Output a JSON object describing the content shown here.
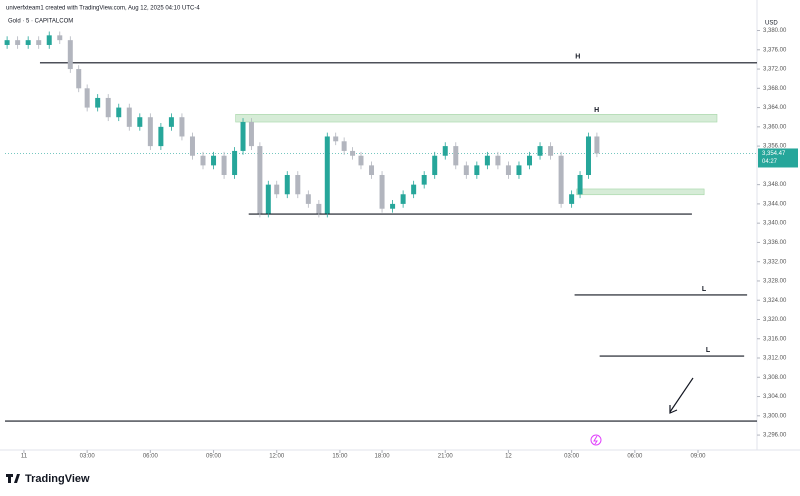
{
  "chart_data": {
    "type": "candlestick",
    "title": "Gold · 5 · CAPITALCOM",
    "subtitle": "univerfxteam1 created with TradingView.com, Aug 12, 2025 04:10 UTC-4",
    "currency": "USD",
    "brand": "TradingView",
    "up_color": "#26a69a",
    "down_color": "#b2b5be",
    "grid": false,
    "x": [
      -0.8,
      -0.3,
      0.2,
      0.7,
      1.2,
      1.7,
      2.2,
      2.6,
      3.0,
      3.5,
      4.0,
      4.5,
      5.0,
      5.5,
      6.0,
      6.5,
      7.0,
      7.5,
      8.0,
      8.5,
      9.0,
      9.5,
      10.0,
      10.4,
      10.8,
      11.2,
      11.6,
      12.0,
      12.5,
      13.0,
      13.5,
      14.0,
      14.4,
      14.8,
      15.2,
      15.6,
      16.0,
      16.5,
      17.0,
      17.5,
      18.0,
      18.5,
      19.0,
      19.5,
      20.0,
      20.5,
      21.0,
      21.5,
      22.0,
      22.5,
      23.0,
      23.5,
      24.0,
      24.5,
      25.0,
      25.5,
      26.0,
      26.4,
      26.8,
      27.2
    ],
    "open": [
      3377,
      3378,
      3377,
      3378,
      3377,
      3379,
      3378,
      3372,
      3368,
      3364,
      3366,
      3362,
      3364,
      3360,
      3362,
      3356,
      3360,
      3362,
      3358,
      3354,
      3352,
      3354,
      3350,
      3355,
      3361,
      3356,
      3342,
      3348,
      3346,
      3350,
      3346,
      3344,
      3342,
      3358,
      3357,
      3355,
      3354,
      3352,
      3350,
      3343,
      3344,
      3346,
      3348,
      3350,
      3354,
      3356,
      3352,
      3350,
      3352,
      3354,
      3352,
      3350,
      3352,
      3354,
      3356,
      3354,
      3344,
      3346,
      3350,
      3358
    ],
    "high": [
      3378.8,
      3378.8,
      3378.8,
      3378.8,
      3379.8,
      3379.8,
      3378.8,
      3372.8,
      3368.8,
      3366.8,
      3366.8,
      3364.8,
      3364.8,
      3362.8,
      3362.8,
      3360.8,
      3362.8,
      3362.8,
      3358.8,
      3354.8,
      3354.8,
      3354.8,
      3355.8,
      3361.8,
      3361.8,
      3356.8,
      3348.8,
      3348.8,
      3350.8,
      3350.8,
      3346.8,
      3344.8,
      3358.8,
      3358.8,
      3357.8,
      3355.8,
      3354.8,
      3352.8,
      3350.8,
      3344.8,
      3346.8,
      3348.8,
      3350.8,
      3354.8,
      3356.8,
      3356.8,
      3352.8,
      3352.8,
      3354.8,
      3354.8,
      3352.8,
      3352.8,
      3354.8,
      3356.8,
      3356.8,
      3354.8,
      3346.8,
      3350.8,
      3358.8,
      3358.8
    ],
    "low": [
      3376.2,
      3376.2,
      3376.2,
      3376.2,
      3376.2,
      3377.2,
      3371.2,
      3367.2,
      3363.2,
      3363.2,
      3361.2,
      3361.2,
      3359.2,
      3359.2,
      3355.2,
      3355.2,
      3359.2,
      3357.2,
      3353.2,
      3351.2,
      3351.2,
      3349.2,
      3349.2,
      3354.2,
      3355.2,
      3341.2,
      3341.2,
      3345.2,
      3345.2,
      3345.2,
      3343.2,
      3341.2,
      3341.2,
      3356.2,
      3354.2,
      3353.2,
      3351.2,
      3349.2,
      3342.2,
      3342.2,
      3343.2,
      3345.2,
      3347.2,
      3349.2,
      3353.2,
      3351.2,
      3349.2,
      3349.2,
      3351.2,
      3351.2,
      3349.2,
      3349.2,
      3351.2,
      3353.2,
      3353.2,
      3343.2,
      3343.2,
      3345.2,
      3349.2,
      3353.7
    ],
    "close": [
      3378,
      3377,
      3378,
      3377,
      3379,
      3378,
      3372,
      3368,
      3364,
      3366,
      3362,
      3364,
      3360,
      3362,
      3356,
      3360,
      3362,
      3358,
      3354,
      3352,
      3354,
      3350,
      3355,
      3361,
      3356,
      3342,
      3348,
      3346,
      3350,
      3346,
      3344,
      3342,
      3358,
      3357,
      3355,
      3354,
      3352,
      3350,
      3343,
      3344,
      3346,
      3348,
      3350,
      3354,
      3356,
      3352,
      3350,
      3352,
      3354,
      3352,
      3350,
      3352,
      3354,
      3356,
      3354,
      3344,
      3346,
      3350,
      3358,
      3354.47
    ],
    "last_price": {
      "value": 3354.47,
      "label": "3,354.47"
    },
    "countdown": "04:27",
    "xlim": [
      -0.9,
      34.8
    ],
    "ylim": [
      3292.9,
      3382.6
    ],
    "xticks": [
      {
        "value": 0,
        "label": "11"
      },
      {
        "value": 3,
        "label": "03:00"
      },
      {
        "value": 6,
        "label": "06:00"
      },
      {
        "value": 9,
        "label": "09:00"
      },
      {
        "value": 12,
        "label": "12:00"
      },
      {
        "value": 15,
        "label": "15:00"
      },
      {
        "value": 17,
        "label": "18:00"
      },
      {
        "value": 20,
        "label": "21:00"
      },
      {
        "value": 23,
        "label": "12"
      },
      {
        "value": 26,
        "label": "03:00"
      },
      {
        "value": 29,
        "label": "06:00"
      },
      {
        "value": 32,
        "label": "09:00"
      }
    ],
    "yticks": [
      {
        "value": 3380,
        "label": "3,380.00"
      },
      {
        "value": 3376,
        "label": "3,376.00"
      },
      {
        "value": 3372,
        "label": "3,372.00"
      },
      {
        "value": 3368,
        "label": "3,368.00"
      },
      {
        "value": 3364,
        "label": "3,364.00"
      },
      {
        "value": 3360,
        "label": "3,360.00"
      },
      {
        "value": 3356,
        "label": "3,356.00"
      },
      {
        "value": 3348,
        "label": "3,348.00"
      },
      {
        "value": 3344,
        "label": "3,344.00"
      },
      {
        "value": 3340,
        "label": "3,340.00"
      },
      {
        "value": 3336,
        "label": "3,336.00"
      },
      {
        "value": 3332,
        "label": "3,332.00"
      },
      {
        "value": 3328,
        "label": "3,328.00"
      },
      {
        "value": 3324,
        "label": "3,324.00"
      },
      {
        "value": 3320,
        "label": "3,320.00"
      },
      {
        "value": 3316,
        "label": "3,316.00"
      },
      {
        "value": 3312,
        "label": "3,312.00"
      },
      {
        "value": 3308,
        "label": "3,308.00"
      },
      {
        "value": 3304,
        "label": "3,304.00"
      },
      {
        "value": 3300,
        "label": "3,300.00"
      },
      {
        "value": 3296,
        "label": "3,296.00"
      }
    ],
    "drawings": [
      {
        "kind": "line",
        "price": 3373.3,
        "x": [
          0.76,
          34.8
        ],
        "label": "H"
      },
      {
        "kind": "zone",
        "price": [
          3361.0,
          3362.6
        ],
        "x": [
          10.05,
          32.9
        ],
        "label": "H"
      },
      {
        "kind": "zone",
        "price": [
          3345.9,
          3347.1
        ],
        "x": [
          26.24,
          32.29
        ]
      },
      {
        "kind": "line",
        "price": 3341.9,
        "x": [
          10.67,
          31.71
        ]
      },
      {
        "kind": "line",
        "price": 3325.1,
        "x": [
          26.14,
          34.33
        ],
        "label": "L"
      },
      {
        "kind": "line",
        "price": 3312.4,
        "x": [
          27.33,
          34.19
        ],
        "label": "L"
      },
      {
        "kind": "line",
        "price": 3298.9,
        "x": [
          -0.9,
          34.8
        ]
      }
    ]
  }
}
